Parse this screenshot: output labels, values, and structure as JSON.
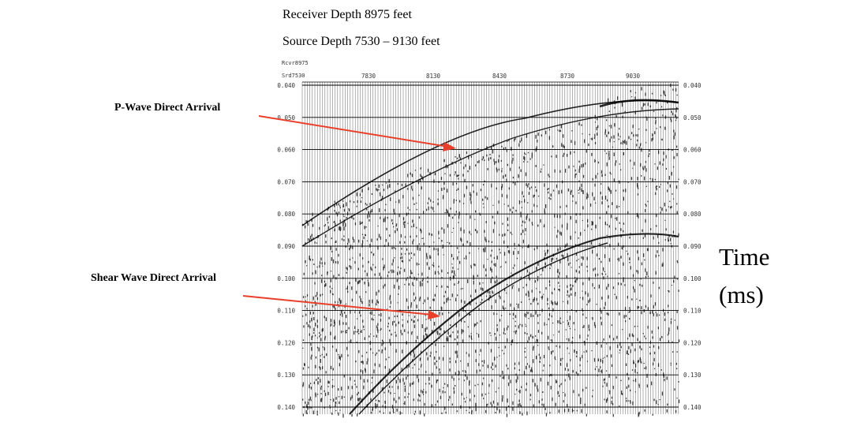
{
  "header": {
    "receiver_depth": "Receiver Depth 8975 feet",
    "source_depth": "Source Depth 7530 – 9130 feet"
  },
  "axis": {
    "receiver_label": "Rcvr8975",
    "source_label": "Srd7530",
    "top_ticks": [
      "7830",
      "8130",
      "8430",
      "8730",
      "9030"
    ],
    "left_ticks": [
      "0.040",
      "0.050",
      "0.060",
      "0.070",
      "0.080",
      "0.090",
      "0.100",
      "0.110",
      "0.120",
      "0.130",
      "0.140"
    ],
    "right_ticks": [
      "0.040",
      "0.050",
      "0.060",
      "0.070",
      "0.080",
      "0.090",
      "0.100",
      "0.110",
      "0.120",
      "0.130",
      "0.140"
    ]
  },
  "annotations": {
    "p_wave": "P-Wave Direct Arrival",
    "shear_wave": "Shear Wave Direct Arrival"
  },
  "time_axis": {
    "title": "Time",
    "units": "(ms)"
  },
  "colors": {
    "arrow": "#e8402a",
    "ink": "#000000"
  }
}
